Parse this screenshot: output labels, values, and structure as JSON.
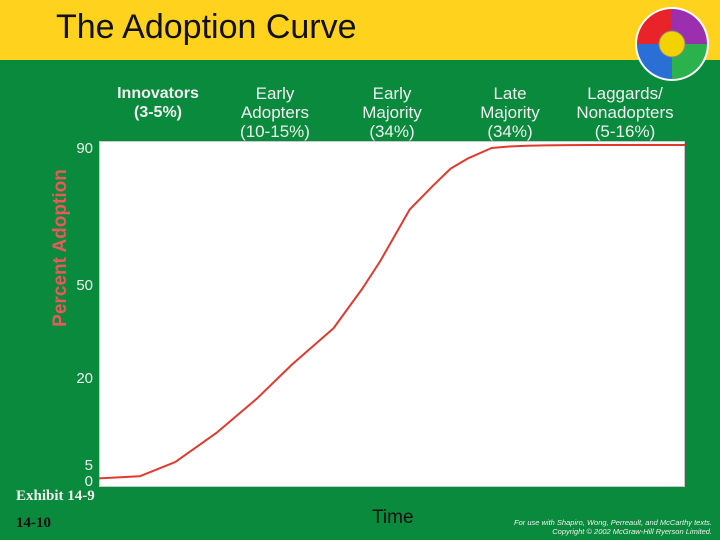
{
  "header": {
    "title": "The Adoption Curve"
  },
  "logo": {
    "icon": "four-color-circle-logo-icon",
    "colors": [
      "#e8232a",
      "#9b2fae",
      "#2bb24c",
      "#2a6fd6",
      "#f2d300"
    ]
  },
  "footer": {
    "exhibit": "Exhibit 14-9",
    "page": "14-10",
    "credit_line1": "For use with Shapiro, Wong, Perreault, and McCarthy texts.",
    "credit_line2": "Copyright © 2002 McGraw-Hill Ryerson Limited."
  },
  "chart_data": {
    "type": "line",
    "title": "The Adoption Curve",
    "xlabel": "Time",
    "ylabel": "Percent Adoption",
    "y_ticks": [
      "90",
      "50",
      "20",
      "5",
      "0"
    ],
    "y_tick_values": [
      90,
      50,
      20,
      5,
      0
    ],
    "ylim": [
      0,
      96
    ],
    "xlim": [
      0,
      100
    ],
    "grid": false,
    "curve_color": "#e03a2e",
    "stages": [
      {
        "line1": "Innovators",
        "line2": "(3-5%)",
        "style": "bold"
      },
      {
        "line1": "Early",
        "line2": "Adopters",
        "line3": "(10-15%)",
        "style": "normal"
      },
      {
        "line1": "Early",
        "line2": "Majority",
        "line3": "(34%)",
        "style": "normal"
      },
      {
        "line1": "Late",
        "line2": "Majority",
        "line3": "(34%)",
        "style": "normal"
      },
      {
        "line1": "Laggards/",
        "line2": "Nonadopters",
        "line3": "(5-16%)",
        "style": "normal"
      }
    ],
    "series": [
      {
        "x": [
          0,
          7,
          13,
          20,
          27,
          33,
          40,
          45,
          48,
          50,
          53,
          57,
          60,
          63,
          67,
          70,
          73,
          76,
          80,
          84,
          87,
          90,
          100
        ],
        "y": [
          0.8,
          1.5,
          5.5,
          10.5,
          16.5,
          24.5,
          36,
          49,
          57,
          63,
          72,
          79,
          84,
          87,
          90,
          93,
          94.5,
          95.2,
          95.8,
          96,
          96,
          96,
          96
        ]
      }
    ]
  }
}
